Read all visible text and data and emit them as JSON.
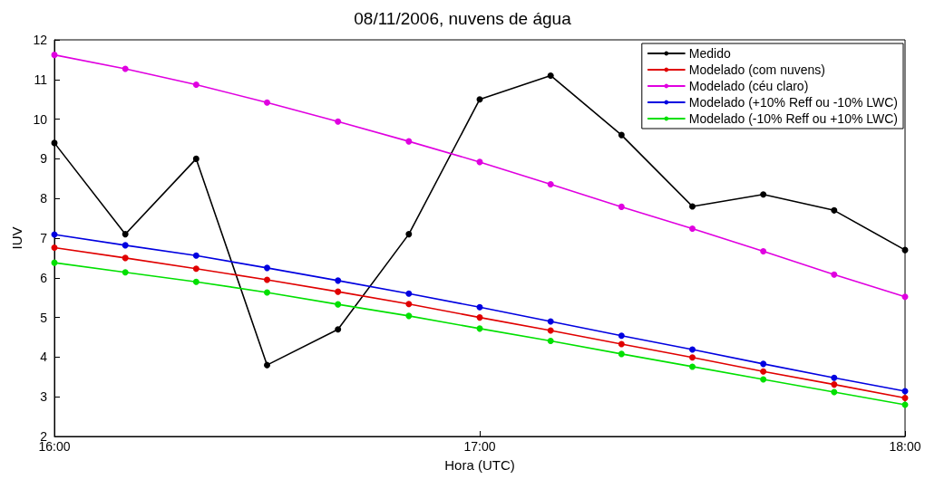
{
  "chart_data": {
    "type": "line",
    "title": "08/11/2006, nuvens de água",
    "xlabel": "Hora (UTC)",
    "ylabel": "IUV",
    "x": [
      16,
      16.1667,
      16.3333,
      16.5,
      16.6667,
      16.8333,
      17,
      17.1667,
      17.3333,
      17.5,
      17.6667,
      17.8333,
      18
    ],
    "series": [
      {
        "name": "Medido",
        "color": "#000000",
        "values": [
          9.4,
          7.1,
          9.0,
          3.8,
          4.7,
          7.1,
          10.5,
          11.1,
          9.6,
          7.8,
          8.1,
          7.7,
          6.7
        ]
      },
      {
        "name": "Modelado (com nuvens)",
        "color": "#e00000",
        "values": [
          6.76,
          6.5,
          6.23,
          5.95,
          5.65,
          5.34,
          5.0,
          4.67,
          4.33,
          3.99,
          3.64,
          3.31,
          2.97
        ]
      },
      {
        "name": "Modelado (céu claro)",
        "color": "#e000e0",
        "values": [
          11.62,
          11.27,
          10.87,
          10.42,
          9.94,
          9.44,
          8.92,
          8.36,
          7.79,
          7.24,
          6.67,
          6.08,
          5.52
        ]
      },
      {
        "name": "Modelado (+10% Reff ou -10% LWC)",
        "color": "#0000e0",
        "values": [
          7.09,
          6.82,
          6.56,
          6.25,
          5.93,
          5.6,
          5.26,
          4.9,
          4.54,
          4.19,
          3.83,
          3.48,
          3.14
        ]
      },
      {
        "name": "Modelado (-10% Reff ou +10% LWC)",
        "color": "#00e000",
        "values": [
          6.38,
          6.14,
          5.9,
          5.63,
          5.33,
          5.04,
          4.72,
          4.41,
          4.08,
          3.76,
          3.44,
          3.12,
          2.8
        ]
      }
    ],
    "xlim": [
      16,
      18
    ],
    "xticks": [
      {
        "value": 16,
        "label": "16:00"
      },
      {
        "value": 17,
        "label": "17:00"
      },
      {
        "value": 18,
        "label": "18:00"
      }
    ],
    "ylim": [
      2,
      12
    ],
    "yticks": [
      2,
      3,
      4,
      5,
      6,
      7,
      8,
      9,
      10,
      11,
      12
    ],
    "grid": false,
    "legend": "top right",
    "marker": "circle",
    "line_style": "solid"
  }
}
